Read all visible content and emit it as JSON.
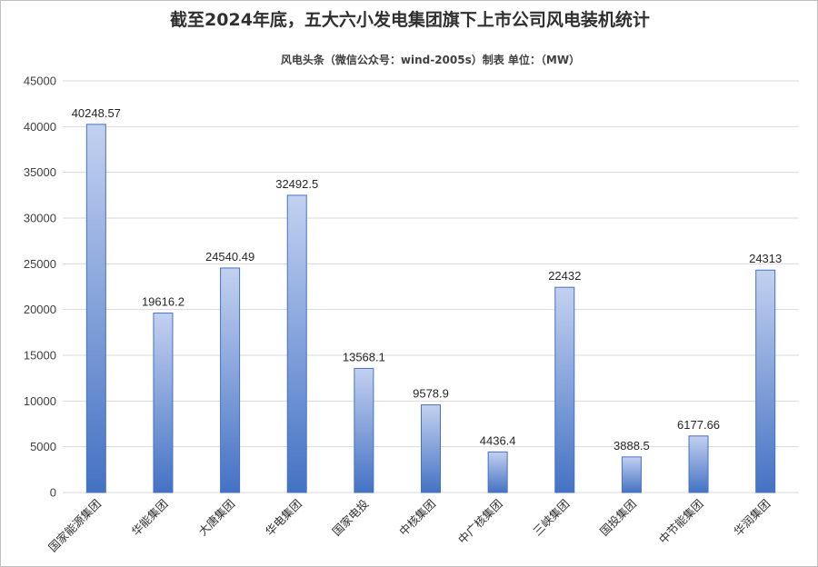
{
  "chart_data": {
    "type": "bar",
    "title": "截至2024年底，五大六小发电集团旗下上市公司风电装机统计",
    "subtitle": "风电头条（微信公众号：wind-2005s）制表      单位：（MW）",
    "categories": [
      "国家能源集团",
      "华能集团",
      "大唐集团",
      "华电集团",
      "国家电投",
      "中核集团",
      "中广核集团",
      "三峡集团",
      "国投集团",
      "中节能集团",
      "华润集团"
    ],
    "values": [
      40248.57,
      19616.2,
      24540.49,
      32492.5,
      13568.1,
      9578.9,
      4436.4,
      22432,
      3888.5,
      6177.66,
      24313
    ],
    "value_labels": [
      "40248.57",
      "19616.2",
      "24540.49",
      "32492.5",
      "13568.1",
      "9578.9",
      "4436.4",
      "22432",
      "3888.5",
      "6177.66",
      "24313"
    ],
    "yticks": [
      "0",
      "5000",
      "10000",
      "15000",
      "20000",
      "25000",
      "30000",
      "35000",
      "40000",
      "45000"
    ],
    "ylim": [
      0,
      45000
    ],
    "grid": true,
    "colors": {
      "bar_top": "#c3d1f0",
      "bar_bottom": "#4472c4",
      "bar_stroke": "#4472c4",
      "grid": "#d9d9d9"
    }
  }
}
